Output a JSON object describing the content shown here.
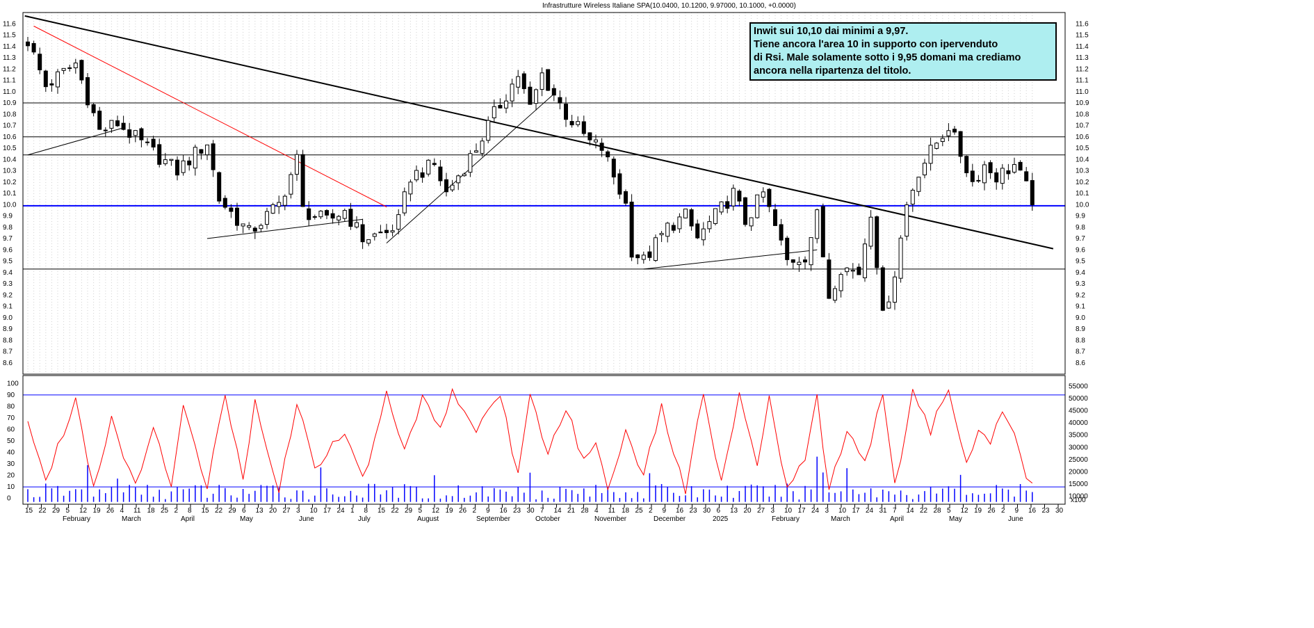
{
  "chart_data": [
    {
      "type": "candlestick",
      "title": "Infrastrutture Wireless Italiane SPA(10.0400, 10.1200, 9.97000, 10.1000, +0.0000)",
      "ylim": [
        8.5,
        11.7
      ],
      "yticks": [
        "8.6",
        "8.7",
        "8.8",
        "8.9",
        "9.0",
        "9.1",
        "9.2",
        "9.3",
        "9.4",
        "9.5",
        "9.6",
        "9.7",
        "9.8",
        "9.9",
        "10.0",
        "10.1",
        "10.2",
        "10.3",
        "10.4",
        "10.5",
        "10.6",
        "10.7",
        "10.8",
        "10.9",
        "11.0",
        "11.1",
        "11.2",
        "11.3",
        "11.4",
        "11.5",
        "11.6"
      ],
      "price_anchors": [
        [
          0,
          11.45
        ],
        [
          3,
          11.05
        ],
        [
          8,
          11.25
        ],
        [
          12,
          10.65
        ],
        [
          15,
          10.72
        ],
        [
          20,
          10.5
        ],
        [
          25,
          10.3
        ],
        [
          30,
          10.55
        ],
        [
          32,
          10.05
        ],
        [
          37,
          9.75
        ],
        [
          42,
          10.0
        ],
        [
          45,
          10.4
        ],
        [
          46,
          9.95
        ],
        [
          50,
          9.85
        ],
        [
          53,
          9.95
        ],
        [
          56,
          9.7
        ],
        [
          60,
          9.75
        ],
        [
          62,
          9.85
        ],
        [
          64,
          10.25
        ],
        [
          68,
          10.35
        ],
        [
          70,
          10.1
        ],
        [
          75,
          10.5
        ],
        [
          78,
          10.8
        ],
        [
          82,
          11.15
        ],
        [
          84,
          10.85
        ],
        [
          86,
          11.15
        ],
        [
          90,
          10.8
        ],
        [
          94,
          10.55
        ],
        [
          96,
          10.5
        ],
        [
          100,
          10.0
        ],
        [
          101,
          9.6
        ],
        [
          103,
          9.5
        ],
        [
          107,
          9.8
        ],
        [
          110,
          9.9
        ],
        [
          112,
          9.7
        ],
        [
          115,
          9.9
        ],
        [
          118,
          10.1
        ],
        [
          120,
          9.85
        ],
        [
          123,
          10.1
        ],
        [
          125,
          9.8
        ],
        [
          127,
          9.5
        ],
        [
          130,
          9.55
        ],
        [
          132,
          9.9
        ],
        [
          134,
          9.2
        ],
        [
          136,
          9.45
        ],
        [
          139,
          9.4
        ],
        [
          141,
          9.95
        ],
        [
          142,
          9.5
        ],
        [
          143,
          9.0
        ],
        [
          145,
          9.4
        ],
        [
          147,
          10.0
        ],
        [
          149,
          10.3
        ],
        [
          152,
          10.55
        ],
        [
          154,
          10.7
        ],
        [
          156,
          10.45
        ],
        [
          158,
          10.2
        ],
        [
          160,
          10.35
        ],
        [
          162,
          10.25
        ],
        [
          165,
          10.35
        ],
        [
          167,
          10.15
        ],
        [
          168,
          10.05
        ]
      ],
      "hlines": [
        10.9,
        10.6,
        10.44,
        9.99,
        9.43
      ],
      "hline_colors": [
        "#000000",
        "#000000",
        "#000000",
        "#0000ff",
        "#000000"
      ],
      "trendlines": [
        {
          "p1": [
            -0.5,
            11.67
          ],
          "p2": [
            171.5,
            9.61
          ],
          "color": "#000000",
          "width": 2
        },
        {
          "p1": [
            1,
            11.58
          ],
          "p2": [
            60,
            9.98
          ],
          "color": "#ff0000",
          "width": 1
        },
        {
          "p1": [
            0,
            10.44
          ],
          "p2": [
            16,
            10.68
          ],
          "color": "#000000",
          "width": 1
        },
        {
          "p1": [
            30,
            9.7
          ],
          "p2": [
            56,
            9.87
          ],
          "color": "#000000",
          "width": 1
        },
        {
          "p1": [
            60,
            9.66
          ],
          "p2": [
            88,
            10.98
          ],
          "color": "#000000",
          "width": 1
        },
        {
          "p1": [
            103,
            9.43
          ],
          "p2": [
            132,
            9.6
          ],
          "color": "#000000",
          "width": 1
        }
      ]
    },
    {
      "type": "line+bar",
      "ylim": [
        -5,
        105
      ],
      "yticks_left": [
        "0",
        "10",
        "20",
        "30",
        "40",
        "50",
        "60",
        "70",
        "80",
        "90",
        "100"
      ],
      "yticks_right": [
        "10000",
        "15000",
        "20000",
        "25000",
        "30000",
        "35000",
        "40000",
        "45000",
        "50000",
        "55000"
      ],
      "volume_scale_label": "x100",
      "rsi_levels": [
        90,
        10
      ],
      "series": [
        {
          "name": "",
          "color": "#ff0000",
          "anchors": [
            [
              0,
              68
            ],
            [
              3,
              15
            ],
            [
              8,
              88
            ],
            [
              11,
              10
            ],
            [
              14,
              70
            ],
            [
              18,
              10
            ],
            [
              21,
              60
            ],
            [
              24,
              12
            ],
            [
              26,
              85
            ],
            [
              30,
              10
            ],
            [
              33,
              88
            ],
            [
              36,
              15
            ],
            [
              38,
              88
            ],
            [
              42,
              5
            ],
            [
              45,
              85
            ],
            [
              48,
              25
            ],
            [
              53,
              60
            ],
            [
              56,
              15
            ],
            [
              60,
              90
            ],
            [
              63,
              40
            ],
            [
              66,
              90
            ],
            [
              69,
              60
            ],
            [
              71,
              93
            ],
            [
              75,
              60
            ],
            [
              79,
              90
            ],
            [
              82,
              20
            ],
            [
              84,
              88
            ],
            [
              87,
              40
            ],
            [
              90,
              80
            ],
            [
              93,
              30
            ],
            [
              95,
              50
            ],
            [
              97,
              10
            ],
            [
              100,
              60
            ],
            [
              103,
              20
            ],
            [
              106,
              80
            ],
            [
              110,
              5
            ],
            [
              113,
              92
            ],
            [
              116,
              15
            ],
            [
              119,
              92
            ],
            [
              122,
              30
            ],
            [
              124,
              85
            ],
            [
              127,
              10
            ],
            [
              130,
              30
            ],
            [
              132,
              90
            ],
            [
              134,
              5
            ],
            [
              137,
              60
            ],
            [
              140,
              30
            ],
            [
              143,
              92
            ],
            [
              145,
              10
            ],
            [
              148,
              92
            ],
            [
              151,
              60
            ],
            [
              154,
              93
            ],
            [
              157,
              30
            ],
            [
              159,
              60
            ],
            [
              161,
              45
            ],
            [
              163,
              80
            ],
            [
              165,
              60
            ],
            [
              167,
              15
            ],
            [
              168,
              16
            ]
          ]
        },
        {
          "name": "",
          "color": "#0000ff",
          "kind": "volume"
        }
      ]
    }
  ],
  "x_axis": {
    "day_labels": [
      "15",
      "22",
      "29",
      "5",
      "12",
      "19",
      "26",
      "4",
      "11",
      "18",
      "25",
      "2",
      "8",
      "15",
      "22",
      "29",
      "6",
      "13",
      "20",
      "27",
      "3",
      "10",
      "17",
      "24",
      "1",
      "8",
      "15",
      "22",
      "29",
      "5",
      "12",
      "19",
      "26",
      "2",
      "9",
      "16",
      "23",
      "30",
      "7",
      "14",
      "21",
      "28",
      "4",
      "11",
      "18",
      "25",
      "2",
      "9",
      "16",
      "23",
      "30",
      "6",
      "13",
      "20",
      "27",
      "3",
      "10",
      "17",
      "24",
      "3",
      "10",
      "17",
      "24",
      "31",
      "7",
      "14",
      "22",
      "28",
      "5",
      "12",
      "19",
      "26",
      "2",
      "9",
      "16",
      "23",
      "30"
    ],
    "month_labels": [
      "February",
      "March",
      "April",
      "May",
      "June",
      "July",
      "August",
      "September",
      "October",
      "November",
      "December",
      "2025",
      "February",
      "March",
      "April",
      "May",
      "June"
    ]
  },
  "annotation": {
    "lines": [
      "Inwit sui 10,10 dai minimi a 9,97.",
      "Tiene ancora l'area 10 in supporto con ipervenduto",
      "di Rsi. Male solamente sotto i 9,95 domani ma crediamo",
      "ancora nella ripartenza del titolo."
    ]
  }
}
